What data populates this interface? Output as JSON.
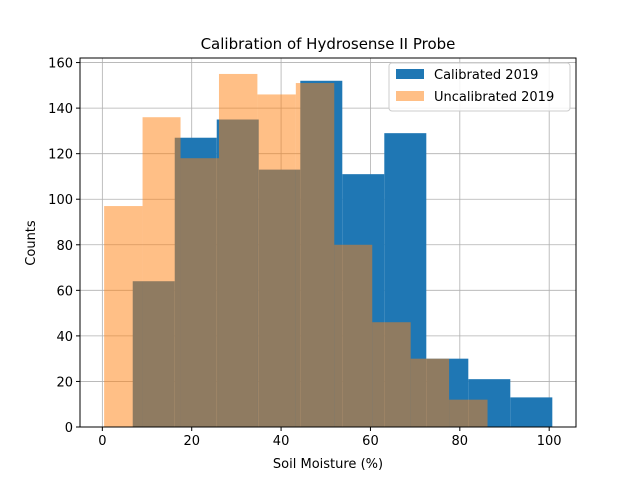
{
  "chart_data": {
    "type": "histogram",
    "title": "Calibration of Hydrosense II Probe",
    "xlabel": "Soil Moisture (%)",
    "ylabel": "Counts",
    "xlim": [
      -5,
      106
    ],
    "ylim": [
      0,
      162
    ],
    "xticks": [
      0,
      20,
      40,
      60,
      80,
      100
    ],
    "yticks": [
      0,
      20,
      40,
      60,
      80,
      100,
      120,
      140,
      160
    ],
    "grid": true,
    "legend_position": "top-right",
    "series": [
      {
        "name": "Calibrated 2019",
        "color": "#1f77b4",
        "opacity": 1.0,
        "bin_edges": [
          6.8,
          16.2,
          25.6,
          35.0,
          44.3,
          53.7,
          63.1,
          72.5,
          81.9,
          91.3,
          100.7
        ],
        "values": [
          64,
          127,
          135,
          113,
          152,
          111,
          129,
          30,
          21,
          13
        ]
      },
      {
        "name": "Uncalibrated 2019",
        "color": "#ff7f0e",
        "opacity": 0.5,
        "bin_edges": [
          0.4,
          9.0,
          17.5,
          26.1,
          34.7,
          43.3,
          51.9,
          60.4,
          69.0,
          77.6,
          86.2
        ],
        "values": [
          97,
          136,
          118,
          155,
          146,
          151,
          80,
          46,
          30,
          12
        ]
      }
    ]
  }
}
